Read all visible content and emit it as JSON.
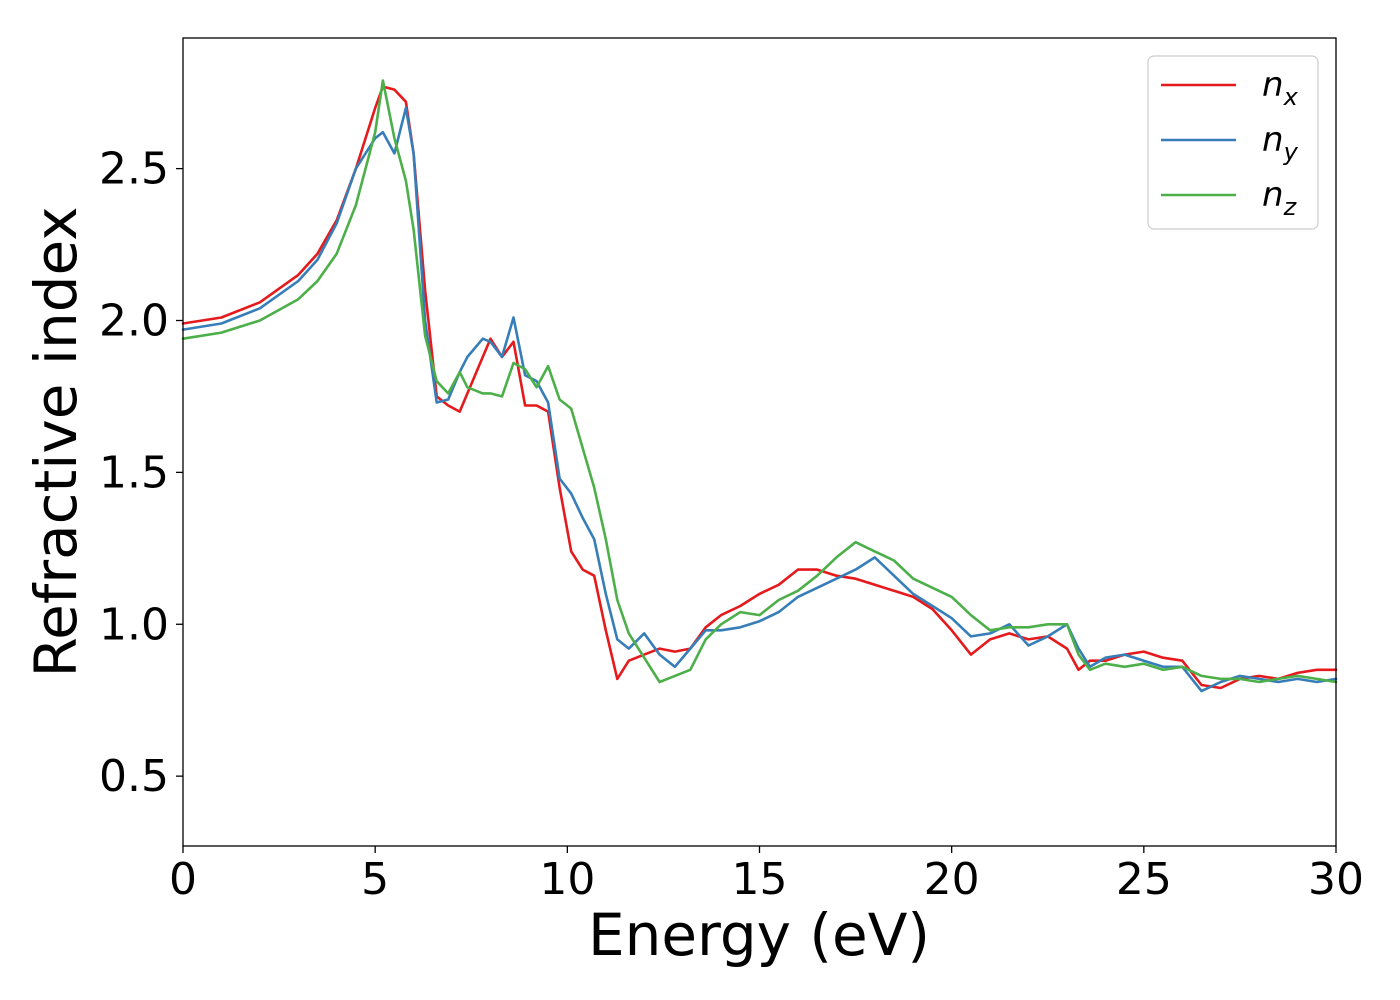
{
  "chart_data": {
    "type": "line",
    "title": "",
    "xlabel": "Energy (eV)",
    "ylabel": "Refractive index",
    "xlim": [
      0,
      30
    ],
    "ylim": [
      0.27,
      2.93
    ],
    "xticks": [
      0,
      5,
      10,
      15,
      20,
      25,
      30
    ],
    "xtick_labels": [
      "0",
      "5",
      "10",
      "15",
      "20",
      "25",
      "30"
    ],
    "yticks": [
      0.5,
      1.0,
      1.5,
      2.0,
      2.5
    ],
    "ytick_labels": [
      "0.5",
      "1.0",
      "1.5",
      "2.0",
      "2.5"
    ],
    "grid": false,
    "legend_position": "top-right",
    "series": [
      {
        "name": "n",
        "subscript": "x",
        "color": "#e41a1c",
        "x": [
          0,
          1,
          2,
          3,
          3.5,
          4,
          4.5,
          5,
          5.2,
          5.5,
          5.8,
          6.0,
          6.3,
          6.6,
          6.9,
          7.2,
          7.4,
          7.8,
          8.0,
          8.3,
          8.6,
          8.9,
          9.2,
          9.5,
          9.8,
          10.1,
          10.4,
          10.7,
          11.0,
          11.3,
          11.6,
          12.0,
          12.4,
          12.8,
          13.2,
          13.6,
          14.0,
          14.5,
          15.0,
          15.5,
          16.0,
          16.5,
          17.0,
          17.5,
          18.0,
          18.5,
          19.0,
          19.5,
          20.0,
          20.5,
          21.0,
          21.5,
          22.0,
          22.5,
          23.0,
          23.3,
          23.6,
          24.0,
          24.5,
          25.0,
          25.5,
          26.0,
          26.5,
          27.0,
          27.5,
          28.0,
          28.5,
          29.0,
          29.5,
          30.0
        ],
        "values": [
          1.99,
          2.01,
          2.06,
          2.15,
          2.22,
          2.33,
          2.5,
          2.7,
          2.77,
          2.76,
          2.72,
          2.55,
          2.1,
          1.75,
          1.72,
          1.7,
          1.76,
          1.88,
          1.94,
          1.88,
          1.93,
          1.72,
          1.72,
          1.7,
          1.45,
          1.24,
          1.18,
          1.16,
          0.98,
          0.82,
          0.88,
          0.9,
          0.92,
          0.91,
          0.92,
          0.99,
          1.03,
          1.06,
          1.1,
          1.13,
          1.18,
          1.18,
          1.16,
          1.15,
          1.13,
          1.11,
          1.09,
          1.05,
          0.98,
          0.9,
          0.95,
          0.97,
          0.95,
          0.96,
          0.92,
          0.85,
          0.88,
          0.88,
          0.9,
          0.91,
          0.89,
          0.88,
          0.8,
          0.79,
          0.82,
          0.83,
          0.82,
          0.84,
          0.85,
          0.85
        ]
      },
      {
        "name": "n",
        "subscript": "y",
        "color": "#377eb8",
        "x": [
          0,
          1,
          2,
          3,
          3.5,
          4,
          4.5,
          5,
          5.2,
          5.5,
          5.8,
          6.0,
          6.3,
          6.6,
          6.9,
          7.2,
          7.4,
          7.8,
          8.0,
          8.3,
          8.6,
          8.9,
          9.2,
          9.5,
          9.8,
          10.1,
          10.4,
          10.7,
          11.0,
          11.3,
          11.6,
          12.0,
          12.4,
          12.8,
          13.2,
          13.6,
          14.0,
          14.5,
          15.0,
          15.5,
          16.0,
          16.5,
          17.0,
          17.5,
          18.0,
          18.5,
          19.0,
          19.5,
          20.0,
          20.5,
          21.0,
          21.5,
          22.0,
          22.5,
          23.0,
          23.3,
          23.6,
          24.0,
          24.5,
          25.0,
          25.5,
          26.0,
          26.5,
          27.0,
          27.5,
          28.0,
          28.5,
          29.0,
          29.5,
          30.0
        ],
        "values": [
          1.97,
          1.99,
          2.04,
          2.13,
          2.2,
          2.32,
          2.5,
          2.6,
          2.62,
          2.55,
          2.7,
          2.55,
          2.0,
          1.73,
          1.74,
          1.83,
          1.88,
          1.94,
          1.93,
          1.88,
          2.01,
          1.82,
          1.8,
          1.73,
          1.48,
          1.43,
          1.35,
          1.28,
          1.1,
          0.95,
          0.92,
          0.97,
          0.9,
          0.86,
          0.92,
          0.98,
          0.98,
          0.99,
          1.01,
          1.04,
          1.09,
          1.12,
          1.15,
          1.18,
          1.22,
          1.16,
          1.1,
          1.06,
          1.02,
          0.96,
          0.97,
          1.0,
          0.93,
          0.96,
          1.0,
          0.92,
          0.86,
          0.89,
          0.9,
          0.88,
          0.86,
          0.86,
          0.78,
          0.81,
          0.83,
          0.82,
          0.81,
          0.82,
          0.81,
          0.82
        ]
      },
      {
        "name": "n",
        "subscript": "z",
        "color": "#4daf4a",
        "x": [
          0,
          1,
          2,
          3,
          3.5,
          4,
          4.5,
          5,
          5.2,
          5.5,
          5.8,
          6.0,
          6.3,
          6.6,
          6.9,
          7.2,
          7.4,
          7.8,
          8.0,
          8.3,
          8.6,
          8.9,
          9.2,
          9.5,
          9.8,
          10.1,
          10.4,
          10.7,
          11.0,
          11.3,
          11.6,
          12.0,
          12.4,
          12.8,
          13.2,
          13.6,
          14.0,
          14.5,
          15.0,
          15.5,
          16.0,
          16.5,
          17.0,
          17.5,
          18.0,
          18.5,
          19.0,
          19.5,
          20.0,
          20.5,
          21.0,
          21.5,
          22.0,
          22.5,
          23.0,
          23.3,
          23.6,
          24.0,
          24.5,
          25.0,
          25.5,
          26.0,
          26.5,
          27.0,
          27.5,
          28.0,
          28.5,
          29.0,
          29.5,
          30.0
        ],
        "values": [
          1.94,
          1.96,
          2.0,
          2.07,
          2.13,
          2.22,
          2.38,
          2.62,
          2.79,
          2.6,
          2.46,
          2.3,
          1.95,
          1.8,
          1.76,
          1.83,
          1.78,
          1.76,
          1.76,
          1.75,
          1.86,
          1.84,
          1.78,
          1.85,
          1.74,
          1.71,
          1.58,
          1.45,
          1.28,
          1.08,
          0.97,
          0.89,
          0.81,
          0.83,
          0.85,
          0.95,
          1.0,
          1.04,
          1.03,
          1.08,
          1.11,
          1.16,
          1.22,
          1.27,
          1.24,
          1.21,
          1.15,
          1.12,
          1.09,
          1.03,
          0.98,
          0.99,
          0.99,
          1.0,
          1.0,
          0.9,
          0.85,
          0.87,
          0.86,
          0.87,
          0.85,
          0.86,
          0.83,
          0.82,
          0.82,
          0.81,
          0.82,
          0.83,
          0.82,
          0.81
        ]
      }
    ]
  }
}
